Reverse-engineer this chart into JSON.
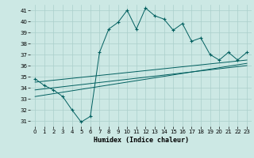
{
  "xlabel": "Humidex (Indice chaleur)",
  "xlim": [
    -0.5,
    23.5
  ],
  "ylim": [
    30.5,
    41.5
  ],
  "yticks": [
    31,
    32,
    33,
    34,
    35,
    36,
    37,
    38,
    39,
    40,
    41
  ],
  "xticks": [
    0,
    1,
    2,
    3,
    4,
    5,
    6,
    7,
    8,
    9,
    10,
    11,
    12,
    13,
    14,
    15,
    16,
    17,
    18,
    19,
    20,
    21,
    22,
    23
  ],
  "bg_color": "#cce8e4",
  "grid_color": "#aacfcb",
  "line_color": "#005f5f",
  "main_series_x": [
    0,
    1,
    2,
    3,
    4,
    5,
    6,
    7,
    8,
    9,
    10,
    11,
    12,
    13,
    14,
    15,
    16,
    17,
    18,
    19,
    20,
    21,
    22,
    23
  ],
  "main_series_y": [
    34.8,
    34.2,
    33.8,
    33.2,
    32.0,
    30.9,
    31.4,
    37.2,
    39.3,
    39.9,
    41.0,
    39.3,
    41.2,
    40.5,
    40.2,
    39.2,
    39.8,
    38.2,
    38.5,
    37.0,
    36.5,
    37.2,
    36.5,
    37.2
  ],
  "line1_x": [
    0,
    23
  ],
  "line1_y": [
    34.5,
    36.5
  ],
  "line2_x": [
    0,
    23
  ],
  "line2_y": [
    33.8,
    36.0
  ],
  "line3_x": [
    0,
    23
  ],
  "line3_y": [
    33.2,
    36.2
  ],
  "tick_fontsize": 5,
  "xlabel_fontsize": 6,
  "linewidth": 0.7,
  "marker_size": 3.5,
  "marker_ew": 0.8
}
